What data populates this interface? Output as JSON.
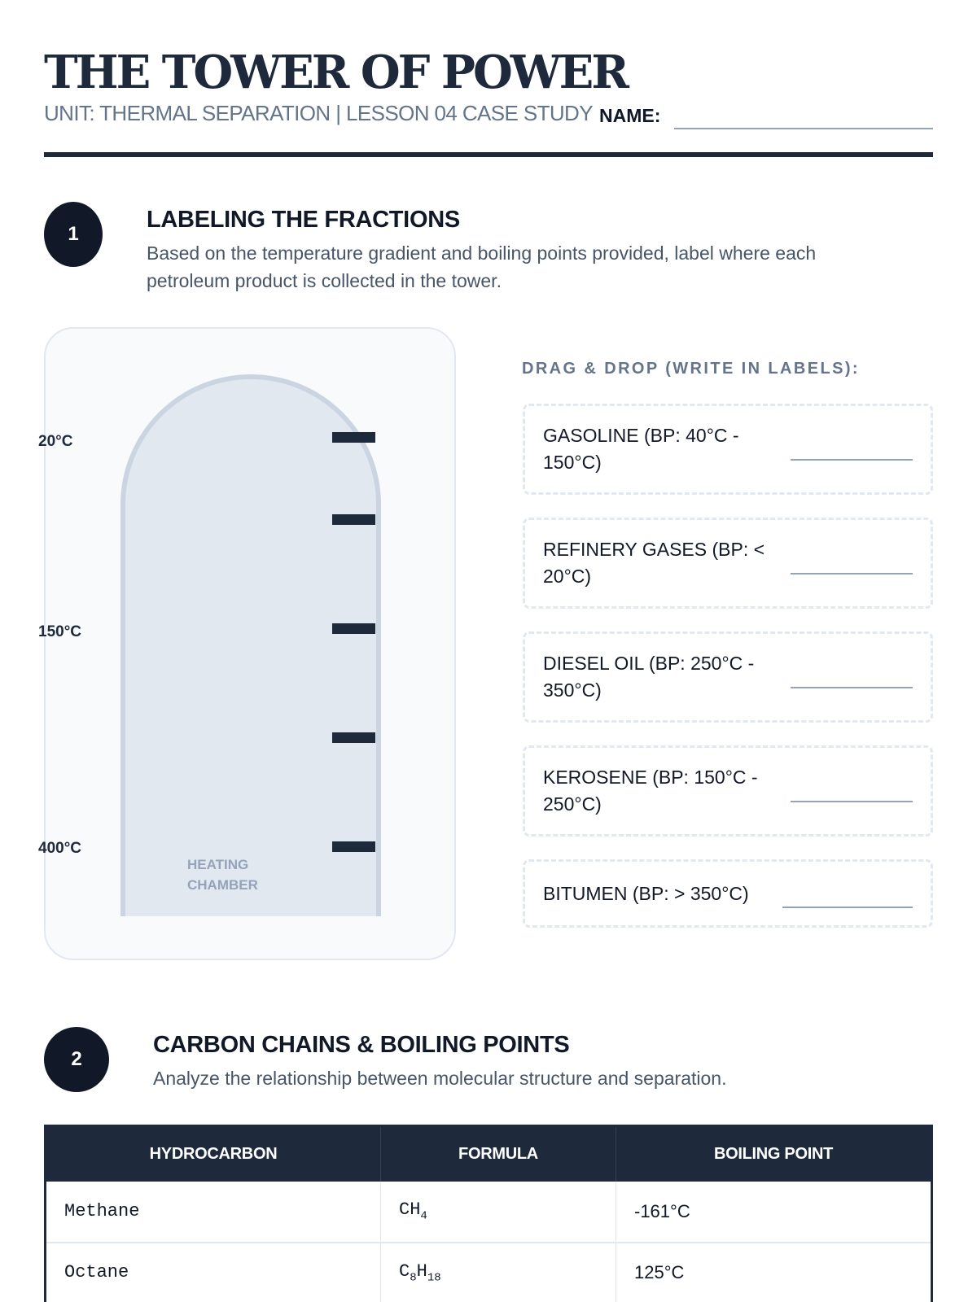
{
  "header": {
    "title": "THE TOWER OF POWER",
    "subtitle": "UNIT: THERMAL SEPARATION | LESSON 04 CASE STUDY",
    "name_label": "NAME:"
  },
  "section1": {
    "number": "1",
    "heading": "LABELING THE FRACTIONS",
    "description": "Based on the temperature gradient and boiling points provided, label where each petroleum product is collected in the tower.",
    "tower": {
      "temps": [
        "20°C",
        "150°C",
        "400°C"
      ],
      "heating_label": "HEATING CHAMBER",
      "tray_count": 5
    },
    "drag_drop_heading": "DRAG & DROP (WRITE IN LABELS):",
    "labels": [
      "GASOLINE (BP: 40°C - 150°C)",
      "REFINERY GASES (BP: < 20°C)",
      "DIESEL OIL (BP: 250°C - 350°C)",
      "KEROSENE (BP: 150°C - 250°C)",
      "BITUMEN (BP: > 350°C)"
    ]
  },
  "section2": {
    "number": "2",
    "heading": "CARBON CHAINS & BOILING POINTS",
    "description": "Analyze the relationship between molecular structure and separation.",
    "table": {
      "headers": [
        "HYDROCARBON",
        "FORMULA",
        "BOILING POINT"
      ],
      "rows": [
        {
          "name": "Methane",
          "formula": [
            "C",
            "",
            "H",
            "4"
          ],
          "bp": "-161°C"
        },
        {
          "name": "Octane",
          "formula": [
            "C",
            "8",
            "H",
            "18"
          ],
          "bp": "125°C"
        }
      ]
    }
  },
  "colors": {
    "primary": "#1e293b",
    "muted": "#64748b",
    "panel": "#f8fafc",
    "tower": "#e2e8f0"
  }
}
